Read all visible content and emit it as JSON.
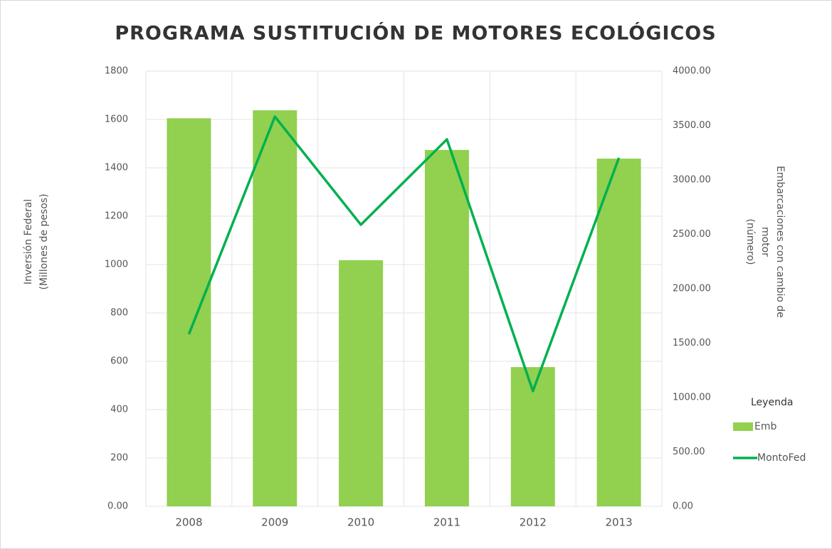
{
  "chart_data": {
    "type": "bar",
    "title": "PROGRAMA SUSTITUCIÓN DE MOTORES ECOLÓGICOS",
    "ylabel": [
      "Inversión Federal",
      "(Millones de pesos)"
    ],
    "y2label": [
      "Embarcaciones con cambio de",
      "motor",
      "(número)"
    ],
    "legend_title": "Leyenda",
    "categories": [
      "2008",
      "2009",
      "2010",
      "2011",
      "2012",
      "2013"
    ],
    "series": [
      {
        "name": "Emb",
        "type": "bar",
        "color": "#92d050",
        "values": [
          1605,
          1638,
          1018,
          1474,
          576,
          1438
        ]
      },
      {
        "name": "MontoFed",
        "type": "line",
        "axis": "y2",
        "color": "#00b050",
        "values": [
          1582,
          3582,
          2588,
          3373,
          1059,
          3203
        ]
      }
    ],
    "ylim": [
      0,
      1800
    ],
    "yticks": [
      {
        "value": 0,
        "label": "0.00"
      },
      200,
      400,
      600,
      800,
      1000,
      1200,
      1400,
      1600,
      1800
    ],
    "y2lim": [
      0,
      4000
    ],
    "y2ticks": [
      {
        "value": 0,
        "label": "0.00"
      },
      {
        "value": 500,
        "label": "500.00"
      },
      {
        "value": 1000,
        "label": "1000.00"
      },
      {
        "value": 1500,
        "label": "1500.00"
      },
      {
        "value": 2000,
        "label": "2000.00"
      },
      {
        "value": 2500,
        "label": "2500.00"
      },
      {
        "value": 3000,
        "label": "3000.00"
      },
      {
        "value": 3500,
        "label": "3500.00"
      },
      {
        "value": 4000,
        "label": "4000.00"
      }
    ],
    "grid": true,
    "legend": "right"
  }
}
